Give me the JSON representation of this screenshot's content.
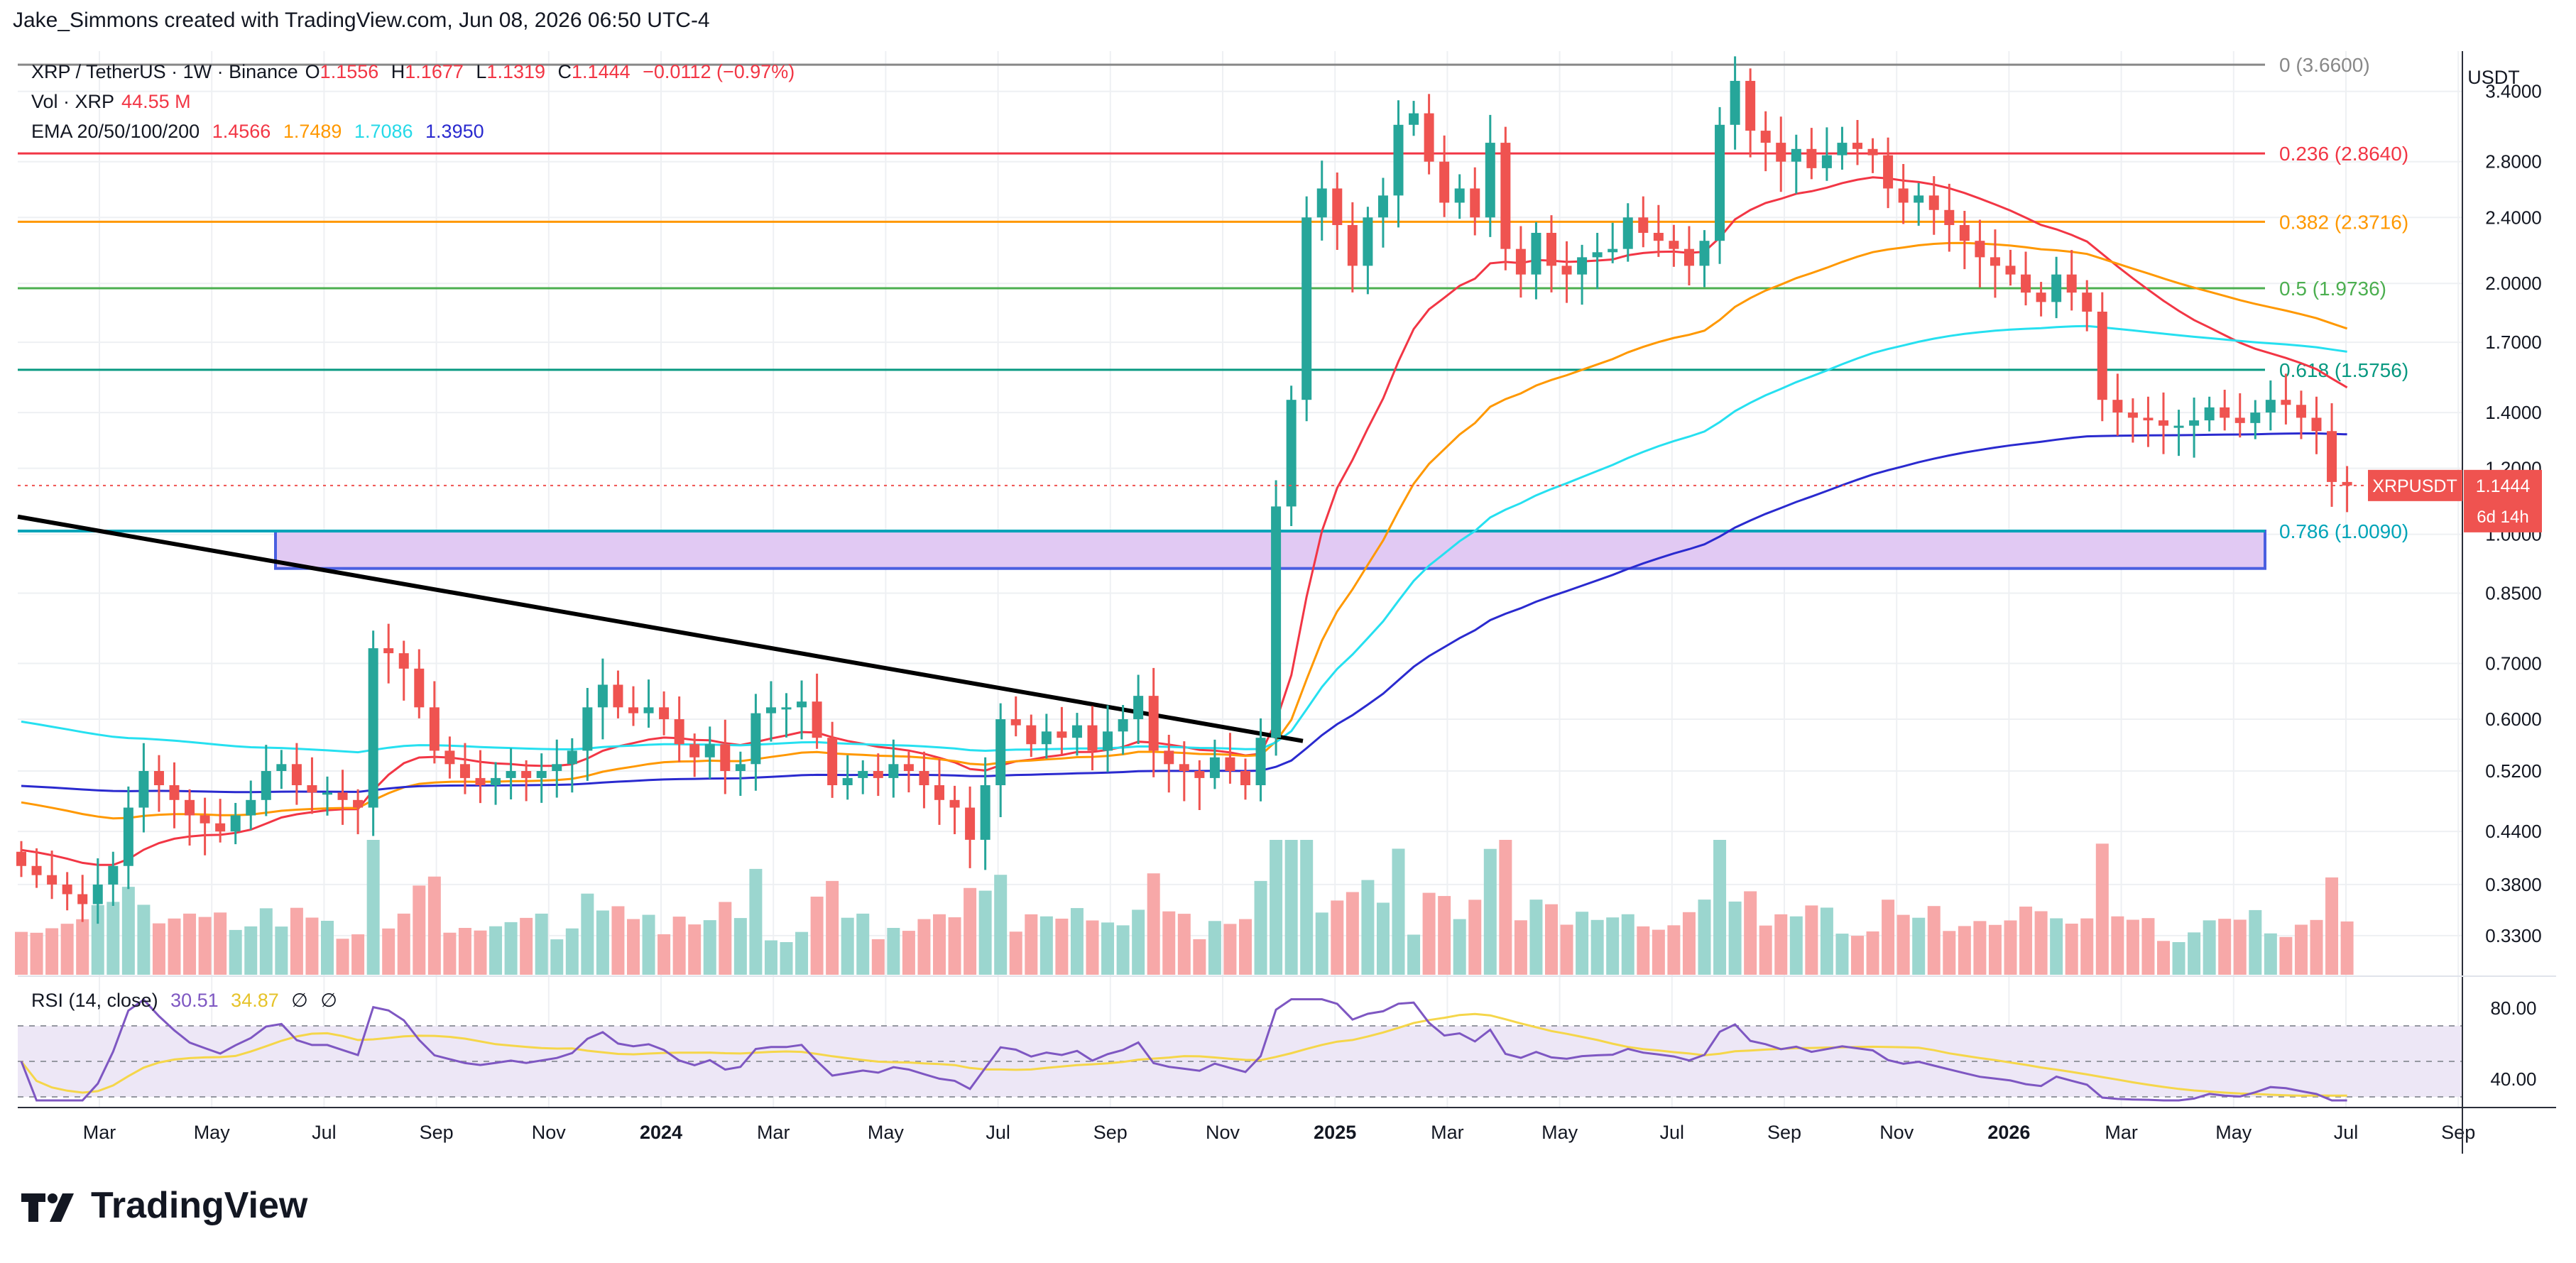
{
  "header": {
    "attribution": "Jake_Simmons created with TradingView.com, Jun 08, 2026 06:50 UTC-4"
  },
  "symbol_line": {
    "pair": "XRP / TetherUS · 1W · Binance",
    "o_label": "O",
    "o": "1.1556",
    "h_label": "H",
    "h": "1.1677",
    "l_label": "L",
    "l": "1.1319",
    "c_label": "C",
    "c": "1.1444",
    "change": "−0.0112 (−0.97%)"
  },
  "vol_line": {
    "label": "Vol · XRP",
    "value": "44.55 M"
  },
  "ema_line": {
    "label": "EMA 20/50/100/200",
    "values": [
      "1.4566",
      "1.7489",
      "1.7086",
      "1.3950"
    ],
    "colors": [
      "#f23645",
      "#ff9800",
      "#26e0f0",
      "#2a2acf"
    ]
  },
  "rsi_line": {
    "label": "RSI (14, close)",
    "value": "30.51",
    "ma": "34.87",
    "sym1": "∅",
    "sym2": "∅"
  },
  "brand": {
    "name": "TradingView"
  },
  "colors": {
    "up": "#26a69a",
    "down": "#ef5350",
    "vol_up": "#9bd6cf",
    "vol_down": "#f7a8a8",
    "rsi": "#7e57c2",
    "rsi_ma": "#f5d64a",
    "zone": "#e1c9f3",
    "zone_border": "#4a5fe0"
  },
  "chart_data": {
    "type": "candlestick",
    "scale": "log",
    "currency": "USDT",
    "price_axis_ticks": [
      "3.4000",
      "2.8000",
      "2.4000",
      "2.0000",
      "1.7000",
      "1.4000",
      "1.2000",
      "1.0000",
      "0.8500",
      "0.7000",
      "0.6000",
      "0.5200",
      "0.4400",
      "0.3800",
      "0.3300"
    ],
    "time_axis_ticks": [
      "Mar",
      "May",
      "Jul",
      "Sep",
      "Nov",
      "2024",
      "Mar",
      "May",
      "Jul",
      "Sep",
      "Nov",
      "2025",
      "Mar",
      "May",
      "Jul",
      "Sep",
      "Nov",
      "2026",
      "Mar",
      "May",
      "Jul",
      "Sep"
    ],
    "current_price": {
      "label": "XRPUSDT",
      "value": "1.1444",
      "countdown": "6d 14h"
    },
    "fib_levels": [
      {
        "label": "0 (3.6600)",
        "value": 3.66,
        "color": "#888888"
      },
      {
        "label": "0.236 (2.8640)",
        "value": 2.864,
        "color": "#f23645"
      },
      {
        "label": "0.382 (2.3716)",
        "value": 2.3716,
        "color": "#ff9800"
      },
      {
        "label": "0.5 (1.9736)",
        "value": 1.9736,
        "color": "#4caf50"
      },
      {
        "label": "0.618 (1.5756)",
        "value": 1.5756,
        "color": "#089981"
      },
      {
        "label": "0.786 (1.0090)",
        "value": 1.009,
        "color": "#00a4b8"
      }
    ],
    "support_zone": {
      "top": 1.009,
      "bottom": 0.91
    },
    "trendline": {
      "from": {
        "date": "2023-01",
        "price": 1.05
      },
      "to": {
        "date": "2025-01",
        "price": 0.565
      }
    },
    "rsi_axis_ticks": [
      "80.00",
      "40.00"
    ],
    "rsi_bands": {
      "upper": 70,
      "middle": 50,
      "lower": 30
    },
    "closes": [
      0.4,
      0.39,
      0.38,
      0.37,
      0.36,
      0.38,
      0.4,
      0.47,
      0.52,
      0.5,
      0.48,
      0.46,
      0.45,
      0.44,
      0.46,
      0.48,
      0.52,
      0.53,
      0.5,
      0.49,
      0.49,
      0.48,
      0.47,
      0.73,
      0.72,
      0.69,
      0.62,
      0.55,
      0.53,
      0.51,
      0.5,
      0.51,
      0.52,
      0.51,
      0.52,
      0.53,
      0.55,
      0.62,
      0.66,
      0.62,
      0.61,
      0.62,
      0.6,
      0.56,
      0.54,
      0.56,
      0.52,
      0.53,
      0.61,
      0.62,
      0.62,
      0.63,
      0.57,
      0.5,
      0.51,
      0.52,
      0.51,
      0.53,
      0.52,
      0.5,
      0.48,
      0.47,
      0.43,
      0.5,
      0.6,
      0.59,
      0.56,
      0.58,
      0.57,
      0.59,
      0.55,
      0.58,
      0.6,
      0.64,
      0.55,
      0.53,
      0.52,
      0.51,
      0.54,
      0.52,
      0.5,
      0.57,
      1.08,
      1.45,
      2.4,
      2.6,
      2.35,
      2.1,
      2.4,
      2.55,
      3.1,
      3.2,
      2.8,
      2.5,
      2.6,
      2.4,
      2.95,
      2.2,
      2.05,
      2.3,
      2.1,
      2.05,
      2.15,
      2.18,
      2.2,
      2.4,
      2.3,
      2.25,
      2.2,
      2.1,
      2.25,
      3.1,
      3.5,
      3.05,
      2.95,
      2.8,
      2.9,
      2.75,
      2.85,
      2.95,
      2.9,
      2.85,
      2.6,
      2.5,
      2.55,
      2.45,
      2.35,
      2.25,
      2.15,
      2.1,
      2.05,
      1.95,
      1.9,
      2.05,
      1.95,
      1.85,
      1.45,
      1.4,
      1.38,
      1.37,
      1.35,
      1.35,
      1.37,
      1.42,
      1.38,
      1.36,
      1.4,
      1.45,
      1.43,
      1.38,
      1.33,
      1.1556,
      1.1444
    ],
    "ema": {
      "ema20_last": 1.4566,
      "ema50_last": 1.7489,
      "ema100_last": 1.7086,
      "ema200_last": 1.395
    },
    "rsi_last": 30.51,
    "rsi_ma_last": 34.87
  }
}
